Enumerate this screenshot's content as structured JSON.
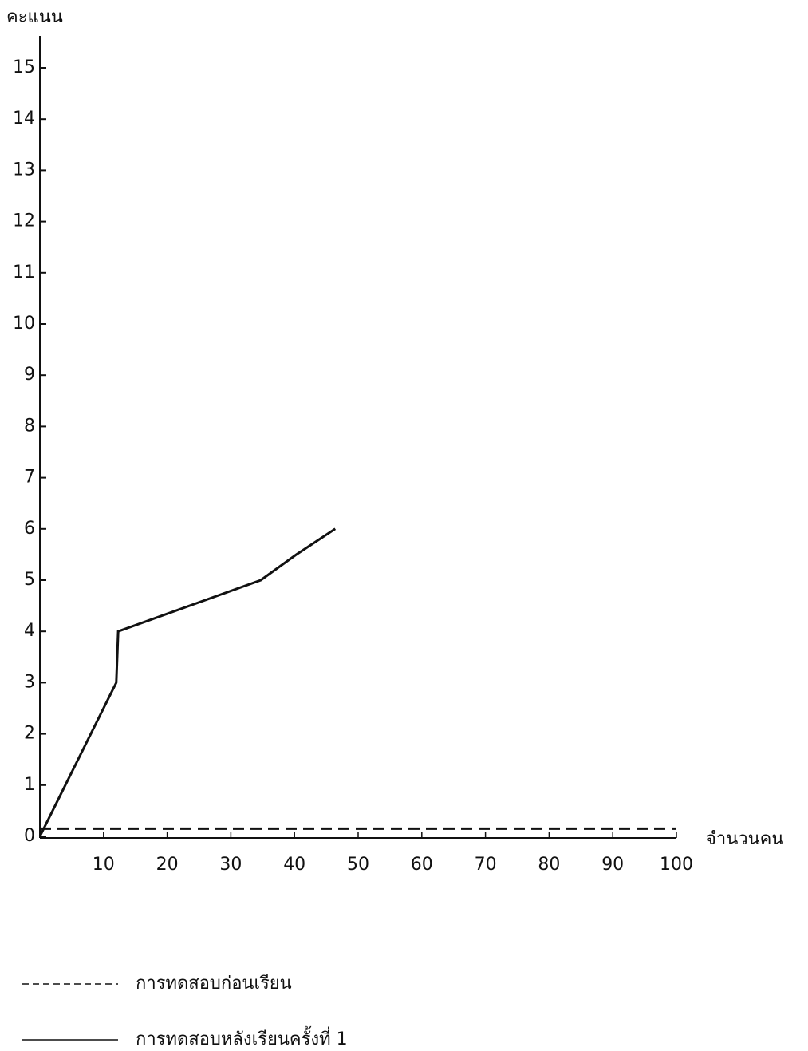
{
  "chart_data": {
    "type": "line",
    "y_label": "คะแนน",
    "x_label": "จำนวนคน",
    "xlim": [
      0,
      100
    ],
    "xticks": [
      10,
      20,
      30,
      40,
      50,
      60,
      70,
      80,
      90,
      100
    ],
    "ylim": [
      0,
      15
    ],
    "yticks": [
      0,
      1,
      2,
      3,
      4,
      5,
      6,
      7,
      8,
      9,
      10,
      11,
      12,
      13,
      14,
      15
    ],
    "series": [
      {
        "name": "การทดสอบก่อนเรียน",
        "color": "#111111",
        "line_style": "dashed",
        "x": [
          0,
          100
        ],
        "values": [
          0.15,
          0.15
        ]
      },
      {
        "name": "การทดสอบหลังเรียนครั้งที่ 1",
        "color": "#111111",
        "line_style": "solid",
        "x": [
          0,
          12,
          12.3,
          34.7,
          40.3,
          46.4
        ],
        "values": [
          0,
          3,
          4,
          5,
          5.5,
          6
        ]
      }
    ]
  }
}
